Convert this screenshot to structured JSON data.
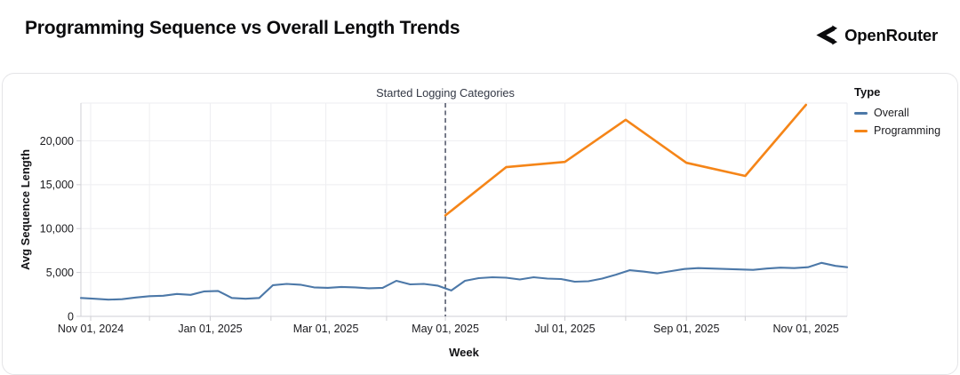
{
  "header": {
    "title": "Programming Sequence vs Overall Length Trends",
    "brand": "OpenRouter"
  },
  "legend": {
    "title": "Type",
    "items": [
      {
        "label": "Overall",
        "color": "#4c78a8"
      },
      {
        "label": "Programming",
        "color": "#f58518"
      }
    ]
  },
  "chart_data": {
    "type": "line",
    "title": "Programming Sequence vs Overall Length Trends",
    "xlabel": "Week",
    "ylabel": "Avg Sequence Length",
    "xlim": [
      "2024-10-27",
      "2025-11-22"
    ],
    "ylim": [
      0,
      24300
    ],
    "grid": true,
    "legend_position": "right",
    "y_ticks": [
      {
        "value": 0,
        "label": "0"
      },
      {
        "value": 5000,
        "label": "5,000"
      },
      {
        "value": 10000,
        "label": "10,000"
      },
      {
        "value": 15000,
        "label": "15,000"
      },
      {
        "value": 20000,
        "label": "20,000"
      }
    ],
    "x_ticks": [
      {
        "date": "2024-11-01",
        "label": "Nov 01, 2024"
      },
      {
        "date": "2024-12-01",
        "label": ""
      },
      {
        "date": "2025-01-01",
        "label": "Jan 01, 2025"
      },
      {
        "date": "2025-02-01",
        "label": ""
      },
      {
        "date": "2025-03-01",
        "label": "Mar 01, 2025"
      },
      {
        "date": "2025-04-01",
        "label": ""
      },
      {
        "date": "2025-05-01",
        "label": "May 01, 2025"
      },
      {
        "date": "2025-06-01",
        "label": ""
      },
      {
        "date": "2025-07-01",
        "label": "Jul 01, 2025"
      },
      {
        "date": "2025-08-01",
        "label": ""
      },
      {
        "date": "2025-09-01",
        "label": "Sep 01, 2025"
      },
      {
        "date": "2025-10-01",
        "label": ""
      },
      {
        "date": "2025-11-01",
        "label": "Nov 01, 2025"
      }
    ],
    "annotation": {
      "label": "Started Logging Categories",
      "date": "2025-05-01",
      "color": "#3f455a"
    },
    "series": [
      {
        "name": "Overall",
        "color": "#4c78a8",
        "points": [
          [
            "2024-10-27",
            2100
          ],
          [
            "2024-11-03",
            2000
          ],
          [
            "2024-11-10",
            1900
          ],
          [
            "2024-11-17",
            1950
          ],
          [
            "2024-11-24",
            2150
          ],
          [
            "2024-12-01",
            2300
          ],
          [
            "2024-12-08",
            2350
          ],
          [
            "2024-12-15",
            2550
          ],
          [
            "2024-12-22",
            2450
          ],
          [
            "2024-12-29",
            2850
          ],
          [
            "2025-01-05",
            2900
          ],
          [
            "2025-01-12",
            2100
          ],
          [
            "2025-01-19",
            2000
          ],
          [
            "2025-01-26",
            2100
          ],
          [
            "2025-02-02",
            3550
          ],
          [
            "2025-02-09",
            3700
          ],
          [
            "2025-02-16",
            3600
          ],
          [
            "2025-02-23",
            3300
          ],
          [
            "2025-03-02",
            3250
          ],
          [
            "2025-03-09",
            3350
          ],
          [
            "2025-03-16",
            3300
          ],
          [
            "2025-03-23",
            3200
          ],
          [
            "2025-03-30",
            3250
          ],
          [
            "2025-04-06",
            4050
          ],
          [
            "2025-04-13",
            3650
          ],
          [
            "2025-04-20",
            3700
          ],
          [
            "2025-04-27",
            3500
          ],
          [
            "2025-05-04",
            2950
          ],
          [
            "2025-05-11",
            4050
          ],
          [
            "2025-05-18",
            4350
          ],
          [
            "2025-05-25",
            4450
          ],
          [
            "2025-06-01",
            4400
          ],
          [
            "2025-06-08",
            4200
          ],
          [
            "2025-06-15",
            4450
          ],
          [
            "2025-06-22",
            4300
          ],
          [
            "2025-06-29",
            4250
          ],
          [
            "2025-07-06",
            3950
          ],
          [
            "2025-07-13",
            4000
          ],
          [
            "2025-07-20",
            4300
          ],
          [
            "2025-07-27",
            4750
          ],
          [
            "2025-08-03",
            5250
          ],
          [
            "2025-08-10",
            5100
          ],
          [
            "2025-08-17",
            4900
          ],
          [
            "2025-08-24",
            5150
          ],
          [
            "2025-08-31",
            5400
          ],
          [
            "2025-09-07",
            5500
          ],
          [
            "2025-09-14",
            5450
          ],
          [
            "2025-09-21",
            5400
          ],
          [
            "2025-09-28",
            5350
          ],
          [
            "2025-10-05",
            5300
          ],
          [
            "2025-10-12",
            5450
          ],
          [
            "2025-10-19",
            5550
          ],
          [
            "2025-10-26",
            5500
          ],
          [
            "2025-11-02",
            5600
          ],
          [
            "2025-11-09",
            6100
          ],
          [
            "2025-11-16",
            5750
          ],
          [
            "2025-11-22",
            5600
          ]
        ]
      },
      {
        "name": "Programming",
        "color": "#f58518",
        "points": [
          [
            "2025-05-01",
            11500
          ],
          [
            "2025-06-01",
            17000
          ],
          [
            "2025-07-01",
            17600
          ],
          [
            "2025-08-01",
            22400
          ],
          [
            "2025-09-01",
            17500
          ],
          [
            "2025-10-01",
            16000
          ],
          [
            "2025-11-01",
            24100
          ]
        ]
      }
    ]
  }
}
